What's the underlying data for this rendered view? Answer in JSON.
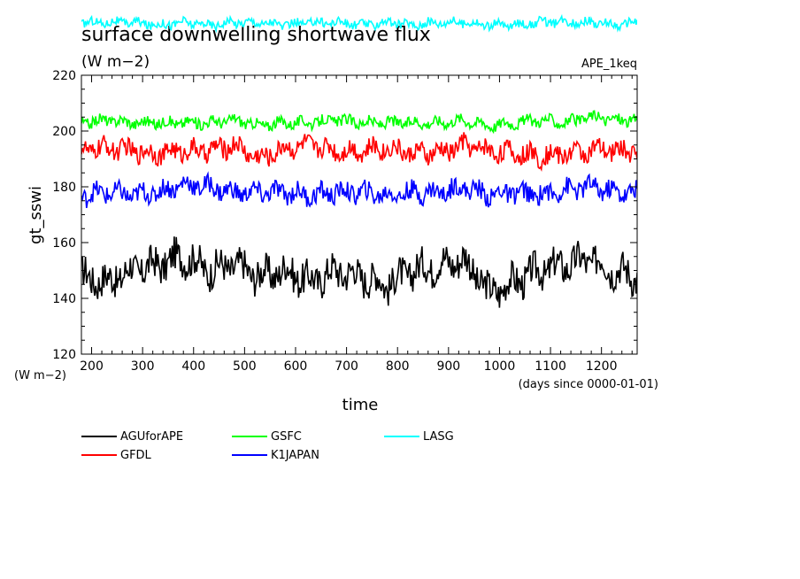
{
  "chart_data": {
    "type": "line",
    "title": "surface downwelling shortwave flux",
    "units": "(W m−2)",
    "y_units_label": "(W m−2)",
    "annotation": "APE_1keq",
    "xlabel": "time",
    "xlabel_units": "(days since 0000-01-01)",
    "ylabel": "gt_sswi",
    "xlim": [
      180,
      1270
    ],
    "ylim": [
      120,
      220
    ],
    "xticks": [
      200,
      300,
      400,
      500,
      600,
      700,
      800,
      900,
      1000,
      1100,
      1200
    ],
    "yticks": [
      120,
      140,
      160,
      180,
      200,
      220
    ],
    "grid": false,
    "legend_position": "bottom",
    "x": [
      180,
      230,
      280,
      330,
      380,
      430,
      480,
      530,
      580,
      630,
      680,
      730,
      780,
      830,
      880,
      930,
      980,
      1030,
      1080,
      1130,
      1180,
      1230,
      1270
    ],
    "series": [
      {
        "name": "AGUforAPE",
        "color": "#000000",
        "values": [
          148,
          146,
          150,
          152,
          155,
          150,
          152,
          148,
          150,
          146,
          150,
          148,
          145,
          150,
          152,
          154,
          142,
          146,
          150,
          152,
          154,
          150,
          148
        ]
      },
      {
        "name": "GFDL",
        "color": "#ff0000",
        "values": [
          193,
          194,
          193,
          192,
          193,
          193,
          195,
          190,
          194,
          195,
          193,
          193,
          194,
          192,
          192,
          195,
          193,
          192,
          191,
          192,
          193,
          193,
          193
        ]
      },
      {
        "name": "GSFC",
        "color": "#00ff00",
        "values": [
          203,
          204,
          203,
          203,
          203,
          203,
          204,
          202,
          203,
          203,
          204,
          203,
          203,
          203,
          203,
          204,
          202,
          203,
          204,
          203,
          205,
          204,
          204
        ]
      },
      {
        "name": "K1JAPAN",
        "color": "#0000ff",
        "values": [
          177,
          178,
          177,
          178,
          181,
          180,
          178,
          178,
          178,
          177,
          178,
          178,
          177,
          178,
          178,
          180,
          177,
          178,
          177,
          179,
          180,
          178,
          178
        ]
      },
      {
        "name": "LASG",
        "color": "#00ffff",
        "values": [
          239,
          239,
          239,
          238,
          239,
          238,
          239,
          239,
          238,
          239,
          239,
          238,
          239,
          238,
          239,
          239,
          238,
          238,
          239,
          239,
          239,
          238,
          239
        ]
      }
    ]
  }
}
